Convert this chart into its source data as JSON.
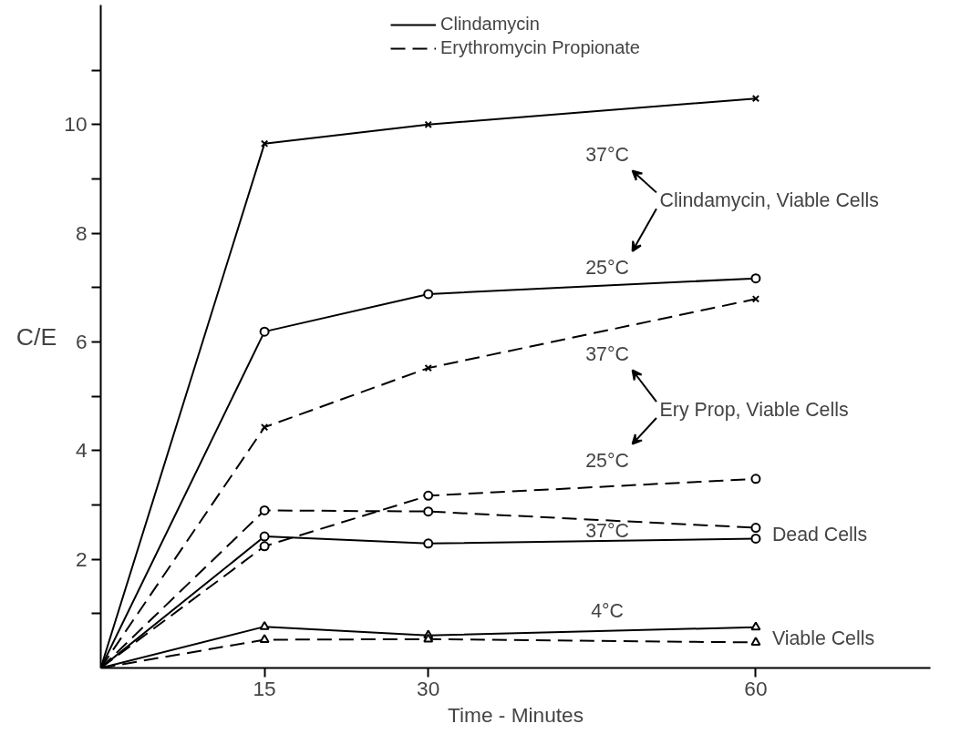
{
  "chart_data": {
    "type": "line",
    "xlabel": "Time - Minutes",
    "ylabel": "C/E",
    "x": [
      0,
      15,
      30,
      60
    ],
    "xlim": [
      0,
      76
    ],
    "xticks": [
      15,
      30,
      60
    ],
    "ylim": [
      0,
      12.2
    ],
    "yticks": [
      {
        "value": 1,
        "label": null
      },
      2,
      {
        "value": 3,
        "label": null
      },
      4,
      {
        "value": 5,
        "label": null
      },
      6,
      {
        "value": 7,
        "label": null
      },
      8,
      {
        "value": 9,
        "label": null
      },
      10,
      {
        "value": 11,
        "label": null
      }
    ],
    "grid": false,
    "legend": "top",
    "series": [
      {
        "name": "Clindamycin",
        "color": "#000000",
        "line_style": "solid",
        "marker": "cross",
        "values": [
          0,
          9.65,
          10.0,
          10.48
        ]
      },
      {
        "color": "#000000",
        "line_style": "solid",
        "marker": "circle",
        "values": [
          0,
          6.19,
          6.88,
          7.17
        ]
      },
      {
        "name": "Erythromycin Propionate",
        "color": "#000000",
        "line_style": "dashed",
        "marker": "cross",
        "values": [
          0,
          4.43,
          5.52,
          6.79
        ]
      },
      {
        "color": "#000000",
        "line_style": "dashed",
        "marker": "circle",
        "values": [
          0,
          2.24,
          3.17,
          3.48
        ]
      },
      {
        "color": "#000000",
        "line_style": "dashed",
        "marker": "circle",
        "values": [
          0,
          2.9,
          2.88,
          2.58
        ]
      },
      {
        "color": "#000000",
        "line_style": "solid",
        "marker": "circle",
        "values": [
          0,
          2.42,
          2.29,
          2.38
        ]
      },
      {
        "color": "#000000",
        "line_style": "solid",
        "marker": "triangle",
        "values": [
          0,
          0.76,
          0.6,
          0.75
        ]
      },
      {
        "color": "#000000",
        "line_style": "dashed",
        "marker": "triangle",
        "values": [
          0,
          0.52,
          0.53,
          0.47
        ]
      }
    ],
    "annotations": [
      "37°C",
      "Clindamycin, Viable Cells",
      "25°C",
      "37°C",
      "Ery Prop, Viable Cells",
      "25°C",
      "37°C",
      {
        "text": "Dead Cells",
        "x": 60,
        "y": 2.38
      },
      "4°C",
      {
        "text": "Viable Cells",
        "x": 60,
        "y": 0.47
      }
    ]
  }
}
